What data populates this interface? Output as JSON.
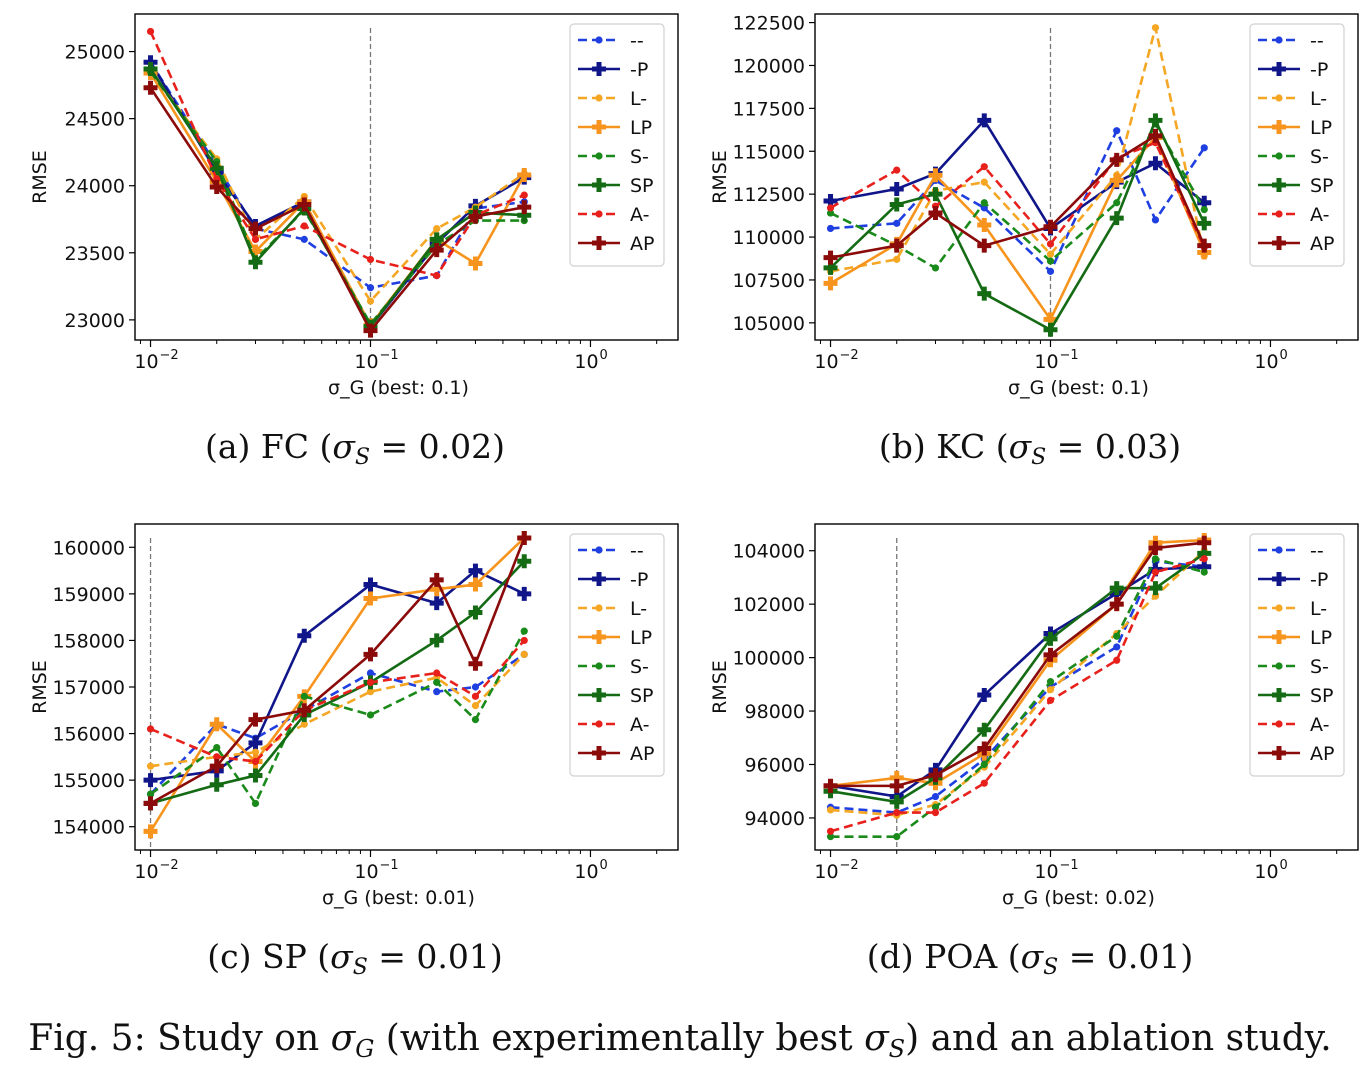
{
  "figure": {
    "caption_label": "Fig. 5:",
    "caption_text_a": " Study on ",
    "caption_sym": "σ",
    "caption_sub_g": "G",
    "caption_text_b": " (with experimentally best ",
    "caption_sub_s": "S",
    "caption_text_c": ") and an ablation study."
  },
  "legend_labels": [
    "--",
    "-P",
    "L-",
    "LP",
    "S-",
    "SP",
    "A-",
    "AP"
  ],
  "series_styles": [
    {
      "color": "#1f3fe0",
      "dashed": true,
      "marker": "dot"
    },
    {
      "color": "#10168a",
      "dashed": false,
      "marker": "plus"
    },
    {
      "color": "#f5a623",
      "dashed": true,
      "marker": "dot"
    },
    {
      "color": "#f7941d",
      "dashed": false,
      "marker": "plus"
    },
    {
      "color": "#1a8a1a",
      "dashed": true,
      "marker": "dot"
    },
    {
      "color": "#146b14",
      "dashed": false,
      "marker": "plus"
    },
    {
      "color": "#e8201c",
      "dashed": true,
      "marker": "dot"
    },
    {
      "color": "#8b0a0a",
      "dashed": false,
      "marker": "plus"
    }
  ],
  "chart_data": [
    {
      "type": "line",
      "caption_label": "(a) FC (",
      "caption_sym": "σ",
      "caption_sub": "S",
      "caption_value": " = 0.02)",
      "xlabel": "σ_G (best: 0.1)",
      "ylabel": "RMSE",
      "xscale": "log",
      "xlim": [
        0.0085,
        2.5
      ],
      "ylim": [
        22850,
        25280
      ],
      "xticks": [
        "10",
        "10",
        "10"
      ],
      "xtick_exponents": [
        "−2",
        "−1",
        "0"
      ],
      "xtick_values": [
        0.01,
        0.1,
        1
      ],
      "yticks": [
        23000,
        23500,
        24000,
        24500,
        25000
      ],
      "ytick_labels": [
        "23000",
        "23500",
        "24000",
        "24500",
        "25000"
      ],
      "best_x": 0.1,
      "x": [
        0.01,
        0.02,
        0.03,
        0.05,
        0.1,
        0.2,
        0.3,
        0.5
      ],
      "series": [
        {
          "name": "--",
          "values": [
            24920,
            24150,
            23680,
            23600,
            23240,
            23330,
            23830,
            23880
          ]
        },
        {
          "name": "-P",
          "values": [
            24920,
            24100,
            23700,
            23880,
            22950,
            23570,
            23850,
            24060
          ]
        },
        {
          "name": "L-",
          "values": [
            24850,
            24200,
            23600,
            23920,
            23140,
            23680,
            23840,
            24090
          ]
        },
        {
          "name": "LP",
          "values": [
            24840,
            24030,
            23510,
            23880,
            22960,
            23600,
            23420,
            24080
          ]
        },
        {
          "name": "S-",
          "values": [
            24850,
            24180,
            23450,
            23820,
            22970,
            23560,
            23740,
            23740
          ]
        },
        {
          "name": "SP",
          "values": [
            24870,
            24130,
            23430,
            23830,
            22950,
            23600,
            23800,
            23780
          ]
        },
        {
          "name": "A-",
          "values": [
            25150,
            24050,
            23600,
            23700,
            23450,
            23330,
            23780,
            23930
          ]
        },
        {
          "name": "AP",
          "values": [
            24730,
            23990,
            23680,
            23860,
            22920,
            23520,
            23770,
            23840
          ]
        }
      ]
    },
    {
      "type": "line",
      "caption_label": "(b) KC (",
      "caption_sym": "σ",
      "caption_sub": "S",
      "caption_value": " = 0.03)",
      "xlabel": "σ_G (best: 0.1)",
      "ylabel": "RMSE",
      "xscale": "log",
      "xlim": [
        0.0085,
        2.5
      ],
      "ylim": [
        104000,
        123000
      ],
      "xticks": [
        "10",
        "10",
        "10"
      ],
      "xtick_exponents": [
        "−2",
        "−1",
        "0"
      ],
      "xtick_values": [
        0.01,
        0.1,
        1
      ],
      "yticks": [
        105000,
        107500,
        110000,
        112500,
        115000,
        117500,
        120000,
        122500
      ],
      "ytick_labels": [
        "105000",
        "107500",
        "110000",
        "112500",
        "115000",
        "117500",
        "120000",
        "122500"
      ],
      "best_x": 0.1,
      "x": [
        0.01,
        0.02,
        0.03,
        0.05,
        0.1,
        0.2,
        0.3,
        0.5
      ],
      "series": [
        {
          "name": "--",
          "values": [
            110500,
            110800,
            113300,
            111700,
            108000,
            116200,
            111000,
            115200
          ]
        },
        {
          "name": "-P",
          "values": [
            112100,
            112800,
            113700,
            116800,
            110500,
            113200,
            114300,
            112000
          ]
        },
        {
          "name": "L-",
          "values": [
            108000,
            108700,
            112700,
            113200,
            109000,
            113600,
            122200,
            108900
          ]
        },
        {
          "name": "LP",
          "values": [
            107300,
            109600,
            113600,
            110700,
            105200,
            113300,
            115800,
            109100
          ]
        },
        {
          "name": "S-",
          "values": [
            111400,
            109500,
            108200,
            112000,
            108600,
            112000,
            116600,
            111600
          ]
        },
        {
          "name": "SP",
          "values": [
            108200,
            111900,
            112500,
            106700,
            104600,
            111100,
            116800,
            110800
          ]
        },
        {
          "name": "A-",
          "values": [
            111700,
            113900,
            111800,
            114100,
            109600,
            114600,
            115500,
            109400
          ]
        },
        {
          "name": "AP",
          "values": [
            108800,
            109500,
            111400,
            109500,
            110600,
            114500,
            115900,
            109500
          ]
        }
      ]
    },
    {
      "type": "line",
      "caption_label": "(c) SP (",
      "caption_sym": "σ",
      "caption_sub": "S",
      "caption_value": " = 0.01)",
      "xlabel": "σ_G (best: 0.01)",
      "ylabel": "RMSE",
      "xscale": "log",
      "xlim": [
        0.0085,
        2.5
      ],
      "ylim": [
        153500,
        160500
      ],
      "xticks": [
        "10",
        "10",
        "10"
      ],
      "xtick_exponents": [
        "−2",
        "−1",
        "0"
      ],
      "xtick_values": [
        0.01,
        0.1,
        1
      ],
      "yticks": [
        154000,
        155000,
        156000,
        157000,
        158000,
        159000,
        160000
      ],
      "ytick_labels": [
        "154000",
        "155000",
        "156000",
        "157000",
        "158000",
        "159000",
        "160000"
      ],
      "best_x": 0.01,
      "x": [
        0.01,
        0.02,
        0.03,
        0.05,
        0.1,
        0.2,
        0.3,
        0.5
      ],
      "series": [
        {
          "name": "--",
          "values": [
            154700,
            156200,
            155900,
            156500,
            157300,
            156900,
            157000,
            157700
          ]
        },
        {
          "name": "-P",
          "values": [
            155000,
            155200,
            155800,
            158100,
            159200,
            158800,
            159500,
            159000
          ]
        },
        {
          "name": "L-",
          "values": [
            155300,
            155500,
            155600,
            156200,
            156900,
            157200,
            156600,
            157700
          ]
        },
        {
          "name": "LP",
          "values": [
            153900,
            156200,
            155400,
            156800,
            158900,
            159100,
            159200,
            160200
          ]
        },
        {
          "name": "S-",
          "values": [
            154700,
            155700,
            154500,
            156800,
            156400,
            157100,
            156300,
            158200
          ]
        },
        {
          "name": "SP",
          "values": [
            154500,
            154900,
            155100,
            156400,
            157100,
            158000,
            158600,
            159700
          ]
        },
        {
          "name": "A-",
          "values": [
            156100,
            155500,
            155400,
            156500,
            157100,
            157300,
            156800,
            158000
          ]
        },
        {
          "name": "AP",
          "values": [
            154500,
            155300,
            156300,
            156500,
            157700,
            159300,
            157500,
            160200
          ]
        }
      ]
    },
    {
      "type": "line",
      "caption_label": "(d) POA (",
      "caption_sym": "σ",
      "caption_sub": "S",
      "caption_value": " = 0.01)",
      "xlabel": "σ_G (best: 0.02)",
      "ylabel": "RMSE",
      "xscale": "log",
      "xlim": [
        0.0085,
        2.5
      ],
      "ylim": [
        92800,
        105000
      ],
      "xticks": [
        "10",
        "10",
        "10"
      ],
      "xtick_exponents": [
        "−2",
        "−1",
        "0"
      ],
      "xtick_values": [
        0.01,
        0.1,
        1
      ],
      "yticks": [
        94000,
        96000,
        98000,
        100000,
        102000,
        104000
      ],
      "ytick_labels": [
        "94000",
        "96000",
        "98000",
        "100000",
        "102000",
        "104000"
      ],
      "best_x": 0.02,
      "x": [
        0.01,
        0.02,
        0.03,
        0.05,
        0.1,
        0.2,
        0.3,
        0.5
      ],
      "series": [
        {
          "name": "--",
          "values": [
            94400,
            94200,
            94800,
            96200,
            98900,
            100400,
            103600,
            103400
          ]
        },
        {
          "name": "-P",
          "values": [
            95200,
            94800,
            95800,
            98600,
            100900,
            102400,
            103300,
            103400
          ]
        },
        {
          "name": "L-",
          "values": [
            94300,
            94100,
            94500,
            95900,
            98800,
            100900,
            102300,
            104000
          ]
        },
        {
          "name": "LP",
          "values": [
            95200,
            95500,
            95300,
            96400,
            99900,
            102000,
            104300,
            104400
          ]
        },
        {
          "name": "S-",
          "values": [
            93300,
            93300,
            94400,
            96000,
            99100,
            100800,
            103700,
            103200
          ]
        },
        {
          "name": "SP",
          "values": [
            95000,
            94600,
            95500,
            97300,
            100700,
            102600,
            102600,
            103900
          ]
        },
        {
          "name": "A-",
          "values": [
            93500,
            94200,
            94200,
            95300,
            98400,
            99900,
            103200,
            103700
          ]
        },
        {
          "name": "AP",
          "values": [
            95200,
            95200,
            95600,
            96600,
            100100,
            102000,
            104100,
            104300
          ]
        }
      ]
    }
  ]
}
